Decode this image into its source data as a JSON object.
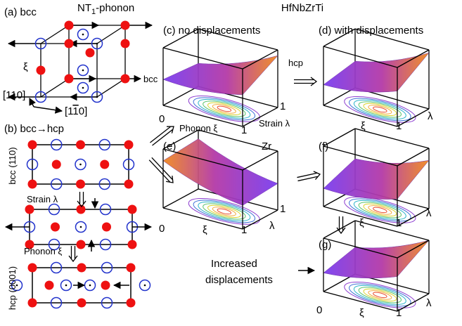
{
  "figure": {
    "title": "HfNbZrTi",
    "panel_a": {
      "label": "(a) bcc",
      "phonon_label": {
        "main": "NT",
        "sub": "1",
        "rest": "-phonon"
      },
      "xi": "ξ",
      "dir1": "[110]",
      "dir2": {
        "open": "[1",
        "bar": "1",
        "close": "0]"
      }
    },
    "panel_b": {
      "label": "(b) bcc",
      "arrow": "→",
      "hcp": "hcp",
      "bcc_plane": "bcc (110)",
      "strain": "Strain λ",
      "phonon": "Phonon ξ",
      "hcp_plane": "hcp (0001)"
    },
    "panel_c": {
      "label": "(c) no displacements",
      "bcc": "bcc",
      "hcp": "hcp",
      "x0": "0",
      "x1": "1",
      "y1": "1",
      "xlabel": "Phonon ξ",
      "ylabel": "Strain λ"
    },
    "panel_d": {
      "label": "(d) with displacements",
      "x1": "1",
      "xlabel": "ξ",
      "ylabel": "λ"
    },
    "panel_e": {
      "label": "(e)",
      "element": "Zr",
      "x0": "0",
      "x1": "1",
      "y1": "1",
      "xlabel": "ξ",
      "ylabel": "λ"
    },
    "panel_f": {
      "label": "(f)",
      "x1": "1",
      "xlabel": "ξ",
      "ylabel": "λ"
    },
    "panel_g": {
      "label": "(g)",
      "x0": "0",
      "x1": "1",
      "xlabel": "ξ",
      "ylabel": "λ"
    },
    "annotation": [
      "Increased",
      "displacements"
    ]
  }
}
